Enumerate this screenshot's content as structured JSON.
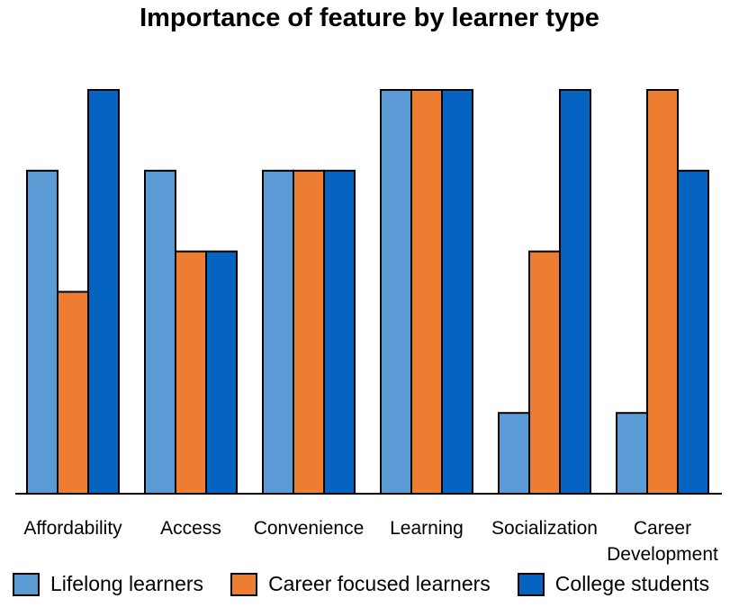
{
  "chart_data": {
    "type": "bar",
    "title": "Importance of feature by learner type",
    "categories": [
      [
        "Affordability"
      ],
      [
        "Access"
      ],
      [
        "Convenience"
      ],
      [
        "Learning"
      ],
      [
        "Socialization"
      ],
      [
        "Career",
        "Development"
      ]
    ],
    "series": [
      {
        "name": "Lifelong learners",
        "color": "#5b9bd5",
        "values": [
          4,
          4,
          4,
          5,
          1,
          1
        ]
      },
      {
        "name": "Career focused learners",
        "color": "#ed7d31",
        "values": [
          2.5,
          3,
          4,
          5,
          3,
          5
        ]
      },
      {
        "name": "College students",
        "color": "#0563c1",
        "values": [
          5,
          3,
          4,
          5,
          5,
          4
        ]
      }
    ],
    "ylim": [
      0,
      5
    ],
    "xlabel": "",
    "ylabel": "",
    "grid": false,
    "legend_position": "bottom"
  }
}
